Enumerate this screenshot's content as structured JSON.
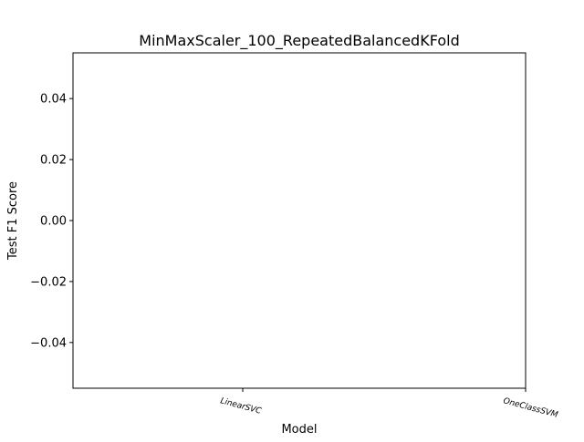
{
  "chart_data": {
    "type": "bar",
    "title": "MinMaxScaler_100_RepeatedBalancedKFold",
    "xlabel": "Model",
    "ylabel": "Test F1 Score",
    "categories": [
      "LinearSVC",
      "OneClassSVM"
    ],
    "values": [
      0,
      0
    ],
    "ylim": [
      -0.055,
      0.055
    ],
    "yticks": [
      0.04,
      0.02,
      0.0,
      -0.02,
      -0.04
    ],
    "ytick_labels": [
      "0.04",
      "0.02",
      "0.00",
      "−0.02",
      "−0.04"
    ],
    "grid": false,
    "legend": "none"
  }
}
